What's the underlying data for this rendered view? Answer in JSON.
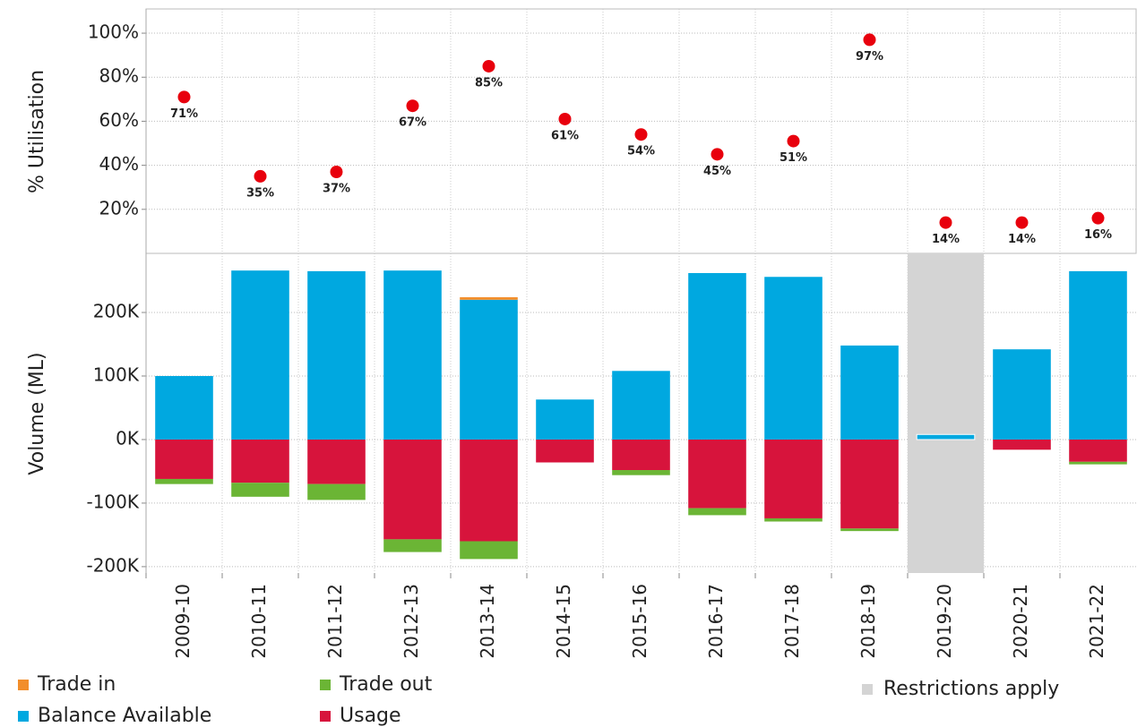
{
  "chart_data": [
    {
      "type": "scatter",
      "y_label": "% Utilisation",
      "values": [
        71,
        35,
        37,
        67,
        85,
        61,
        54,
        45,
        51,
        97,
        14,
        14,
        16
      ],
      "value_labels": [
        "71%",
        "35%",
        "37%",
        "67%",
        "85%",
        "61%",
        "54%",
        "45%",
        "51%",
        "97%",
        "14%",
        "14%",
        "16%"
      ],
      "color": "#e8000d",
      "ylim": [
        0,
        111
      ],
      "yticks": [
        {
          "value": 20,
          "label": "20%"
        },
        {
          "value": 40,
          "label": "40%"
        },
        {
          "value": 60,
          "label": "60%"
        },
        {
          "value": 80,
          "label": "80%"
        },
        {
          "value": 100,
          "label": "100%"
        }
      ],
      "grid": true
    },
    {
      "type": "bar",
      "stacked": true,
      "y_label": "Volume (ML)",
      "categories": [
        "2009-10",
        "2010-11",
        "2011-12",
        "2012-13",
        "2013-14",
        "2014-15",
        "2015-16",
        "2016-17",
        "2017-18",
        "2018-19",
        "2019-20",
        "2020-21",
        "2021-22"
      ],
      "series": [
        {
          "name": "Balance Available",
          "color": "#00a8e0",
          "values": [
            100000,
            266000,
            265000,
            266000,
            220000,
            63000,
            108000,
            262000,
            256000,
            148000,
            8000,
            142000,
            265000
          ]
        },
        {
          "name": "Usage",
          "color": "#d7143c",
          "values": [
            -62000,
            -68000,
            -70000,
            -157000,
            -160000,
            -36000,
            -48000,
            -108000,
            -124000,
            -140000,
            0,
            -16000,
            -35000
          ]
        },
        {
          "name": "Trade in",
          "color": "#f28e2b",
          "values": [
            0,
            0,
            0,
            0,
            4000,
            0,
            0,
            0,
            0,
            0,
            0,
            0,
            0
          ]
        },
        {
          "name": "Trade out",
          "color": "#6bb535",
          "values": [
            -8000,
            -22000,
            -25000,
            -20000,
            -28000,
            0,
            -8000,
            -11000,
            -5000,
            -4000,
            0,
            0,
            -4000
          ]
        }
      ],
      "highlight": {
        "categories": [
          "2019-20"
        ],
        "label": "Restrictions apply",
        "color": "#d4d4d4"
      },
      "ylim": [
        -210000,
        293000
      ],
      "yticks": [
        {
          "value": -200000,
          "label": "-200K"
        },
        {
          "value": -100000,
          "label": "-100K"
        },
        {
          "value": 0,
          "label": "0K"
        },
        {
          "value": 100000,
          "label": "100K"
        },
        {
          "value": 200000,
          "label": "200K"
        }
      ],
      "grid": true
    }
  ]
}
